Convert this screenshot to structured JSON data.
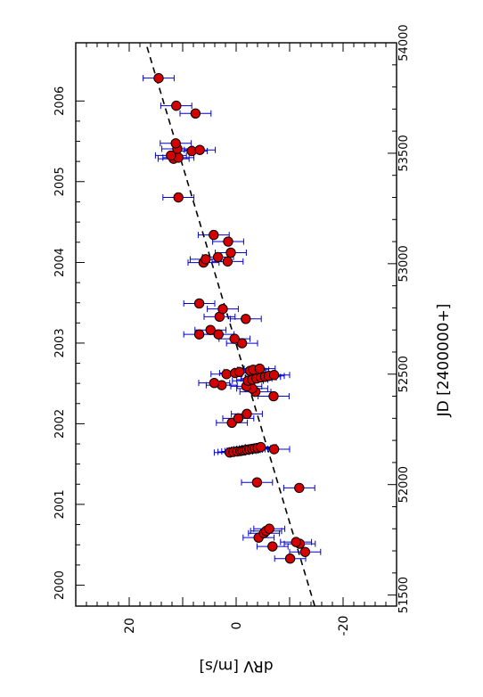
{
  "chart_data": {
    "type": "scatter",
    "orientation": "rotated-90-counterclockwise",
    "title": "",
    "ylabel": "dRV  [m/s]",
    "jd_axis_label": "JD  [2400000+]",
    "year_axis_label": "",
    "rv_range": [
      -30,
      30
    ],
    "rv_ticks": [
      "20",
      "0",
      "-20"
    ],
    "rv_tick_values": [
      20,
      0,
      -20
    ],
    "jd_range": [
      51450,
      54000
    ],
    "jd_ticks": [
      "51500",
      "52000",
      "52500",
      "53000",
      "53500",
      "54000"
    ],
    "jd_tick_values": [
      51500,
      52000,
      52500,
      53000,
      53500,
      54000
    ],
    "year_ticks": [
      "2000",
      "2001",
      "2002",
      "2003",
      "2004",
      "2005",
      "2006"
    ],
    "year_tick_jd": [
      51544.5,
      51910.5,
      52275.5,
      52640.5,
      53005.5,
      53371.5,
      53736.5
    ],
    "trend_line": {
      "style": "dashed",
      "jd": [
        51450,
        54000
      ],
      "rv": [
        -14.7,
        16.9
      ]
    },
    "marker_color": "#d40000",
    "errorbar_color": "#0000cc",
    "series": [
      {
        "points": [
          {
            "jd": 51665,
            "rv": -10.1,
            "err": 2.9
          },
          {
            "jd": 51695,
            "rv": -12.9,
            "err": 2.9
          },
          {
            "jd": 51720,
            "rv": -6.8,
            "err": 2.9
          },
          {
            "jd": 51732,
            "rv": -11.9,
            "err": 2.9
          },
          {
            "jd": 51740,
            "rv": -11.2,
            "err": 2.9
          },
          {
            "jd": 51760,
            "rv": -4.2,
            "err": 2.9
          },
          {
            "jd": 51780,
            "rv": -5.2,
            "err": 2.9
          },
          {
            "jd": 51790,
            "rv": -5.6,
            "err": 2.9
          },
          {
            "jd": 51800,
            "rv": -6.2,
            "err": 2.9
          },
          {
            "jd": 51985,
            "rv": -11.8,
            "err": 2.9
          },
          {
            "jd": 52010,
            "rv": -3.9,
            "err": 2.9
          },
          {
            "jd": 52145,
            "rv": 1.2,
            "err": 2.9
          },
          {
            "jd": 52148,
            "rv": 0.5,
            "err": 2.9
          },
          {
            "jd": 52150,
            "rv": -0.2,
            "err": 2.9
          },
          {
            "jd": 52152,
            "rv": -0.8,
            "err": 2.9
          },
          {
            "jd": 52154,
            "rv": -1.2,
            "err": 2.9
          },
          {
            "jd": 52156,
            "rv": -1.6,
            "err": 2.9
          },
          {
            "jd": 52158,
            "rv": -2.0,
            "err": 2.9
          },
          {
            "jd": 52160,
            "rv": -2.5,
            "err": 2.9
          },
          {
            "jd": 52162,
            "rv": -3.0,
            "err": 2.9
          },
          {
            "jd": 52164,
            "rv": -3.5,
            "err": 2.9
          },
          {
            "jd": 52166,
            "rv": -4.0,
            "err": 2.9
          },
          {
            "jd": 52160,
            "rv": -7.1,
            "err": 2.9
          },
          {
            "jd": 52170,
            "rv": -4.6,
            "err": 2.9
          },
          {
            "jd": 52280,
            "rv": 0.8,
            "err": 2.9
          },
          {
            "jd": 52300,
            "rv": -0.4,
            "err": 2.9
          },
          {
            "jd": 52320,
            "rv": -2.0,
            "err": 2.9
          },
          {
            "jd": 52400,
            "rv": -7.0,
            "err": 2.9
          },
          {
            "jd": 52420,
            "rv": -3.6,
            "err": 2.9
          },
          {
            "jd": 52435,
            "rv": -3.0,
            "err": 2.9
          },
          {
            "jd": 52445,
            "rv": -1.9,
            "err": 2.9
          },
          {
            "jd": 52450,
            "rv": 2.7,
            "err": 2.9
          },
          {
            "jd": 52460,
            "rv": 4.1,
            "err": 2.9
          },
          {
            "jd": 52470,
            "rv": -2.2,
            "err": 2.9
          },
          {
            "jd": 52475,
            "rv": -3.0,
            "err": 2.9
          },
          {
            "jd": 52480,
            "rv": -3.8,
            "err": 2.9
          },
          {
            "jd": 52485,
            "rv": -4.6,
            "err": 2.9
          },
          {
            "jd": 52488,
            "rv": -5.4,
            "err": 2.9
          },
          {
            "jd": 52492,
            "rv": -6.1,
            "err": 2.9
          },
          {
            "jd": 52496,
            "rv": -7.1,
            "err": 2.9
          },
          {
            "jd": 52500,
            "rv": 1.8,
            "err": 2.9
          },
          {
            "jd": 52505,
            "rv": 0.2,
            "err": 2.9
          },
          {
            "jd": 52510,
            "rv": -0.6,
            "err": 2.9
          },
          {
            "jd": 52515,
            "rv": -2.6,
            "err": 2.9
          },
          {
            "jd": 52520,
            "rv": -3.2,
            "err": 2.9
          },
          {
            "jd": 52525,
            "rv": -4.4,
            "err": 2.9
          },
          {
            "jd": 52640,
            "rv": -1.1,
            "err": 2.9
          },
          {
            "jd": 52660,
            "rv": 0.3,
            "err": 2.9
          },
          {
            "jd": 52680,
            "rv": 3.3,
            "err": 2.9
          },
          {
            "jd": 52680,
            "rv": 6.9,
            "err": 2.9
          },
          {
            "jd": 52700,
            "rv": 4.8,
            "err": 2.9
          },
          {
            "jd": 52750,
            "rv": -1.8,
            "err": 2.9
          },
          {
            "jd": 52760,
            "rv": 3.1,
            "err": 2.9
          },
          {
            "jd": 52795,
            "rv": 2.5,
            "err": 2.9
          },
          {
            "jd": 52820,
            "rv": 6.9,
            "err": 2.9
          },
          {
            "jd": 53005,
            "rv": 6.1,
            "err": 2.9
          },
          {
            "jd": 53010,
            "rv": 1.6,
            "err": 2.9
          },
          {
            "jd": 53020,
            "rv": 5.7,
            "err": 2.9
          },
          {
            "jd": 53030,
            "rv": 3.4,
            "err": 2.9
          },
          {
            "jd": 53050,
            "rv": 1.0,
            "err": 2.9
          },
          {
            "jd": 53100,
            "rv": 1.5,
            "err": 2.9
          },
          {
            "jd": 53130,
            "rv": 4.2,
            "err": 2.9
          },
          {
            "jd": 53300,
            "rv": 10.8,
            "err": 2.9
          },
          {
            "jd": 53475,
            "rv": 11.7,
            "err": 2.9
          },
          {
            "jd": 53480,
            "rv": 10.8,
            "err": 2.9
          },
          {
            "jd": 53490,
            "rv": 12.2,
            "err": 2.9
          },
          {
            "jd": 53510,
            "rv": 8.3,
            "err": 2.9
          },
          {
            "jd": 53515,
            "rv": 6.8,
            "err": 2.9
          },
          {
            "jd": 53520,
            "rv": 11.0,
            "err": 2.9
          },
          {
            "jd": 53545,
            "rv": 11.3,
            "err": 2.9
          },
          {
            "jd": 53680,
            "rv": 7.6,
            "err": 2.9
          },
          {
            "jd": 53715,
            "rv": 11.2,
            "err": 2.9
          },
          {
            "jd": 53840,
            "rv": 14.5,
            "err": 2.9
          }
        ]
      }
    ]
  }
}
